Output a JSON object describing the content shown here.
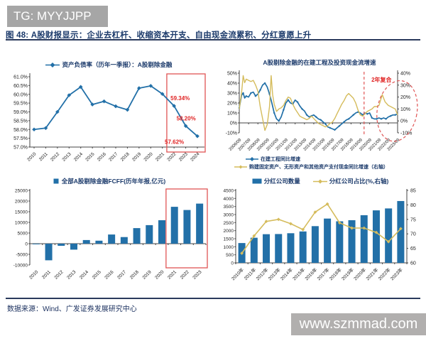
{
  "watermark_top": {
    "text": "TG: MYYJJPP"
  },
  "figure": {
    "title": "图 48: A股财报显示：企业去杠杆、收缩资本开支、自由现金流累积、分红意愿上升"
  },
  "footer": {
    "source": "数据来源：Wind、广发证券发展研究中心"
  },
  "watermark_bottom": {
    "text": "www.szmmad.com"
  },
  "colors": {
    "blue": "#2270a8",
    "yellow": "#d5bc5c",
    "red": "#e02424",
    "red_box": "#e05555",
    "navy": "#1b3a6b"
  },
  "chart_data": [
    {
      "id": "debt-ratio",
      "type": "line",
      "legend": "资产负债率（历年一季报）：A股剔除金融",
      "categories": [
        "2010",
        "2011",
        "2012",
        "2013",
        "2014",
        "2015",
        "2016",
        "2017",
        "2018",
        "2019",
        "2020",
        "2021",
        "2022",
        "2023",
        "2024"
      ],
      "values": [
        58.0,
        58.08,
        59.0,
        59.95,
        60.42,
        59.42,
        59.6,
        59.32,
        59.12,
        60.35,
        60.48,
        60.02,
        59.34,
        58.2,
        57.62
      ],
      "ylim": [
        57.0,
        61.0
      ],
      "ystep": 0.5,
      "grid": false,
      "legend_position": "top",
      "annotations": [
        {
          "text": "59.34%",
          "category": "2022"
        },
        {
          "text": "58.20%",
          "category": "2023"
        },
        {
          "text": "57.62%",
          "category": "2024"
        }
      ],
      "highlight_box_categories": [
        "2022",
        "2024"
      ]
    },
    {
      "id": "capex-growth",
      "type": "line",
      "title": "A股剔除金融的在建工程及投资现金流增速",
      "x_range": [
        2006.75,
        2023.75
      ],
      "x_ticks": [
        "2006/09",
        "2007/09",
        "2008/09",
        "2009/09",
        "2010/09",
        "2011/09",
        "2012/09",
        "2013/09",
        "2014/09",
        "2015/09",
        "2016/09",
        "2017/09",
        "2018/09",
        "2019/09",
        "2020/09",
        "2021/09",
        "2022/09",
        "2023/09"
      ],
      "left_axis": {
        "min": -10,
        "max": 50,
        "step": 10,
        "unit": "%"
      },
      "right_axis": {
        "min": -10,
        "max": 40,
        "step": 10,
        "unit": "%"
      },
      "grid": false,
      "legend_position": "bottom",
      "series": [
        {
          "name": "在建工程同比增速",
          "axis": "left",
          "color": "blue",
          "points": [
            [
              2006.75,
              15
            ],
            [
              2007.0,
              28
            ],
            [
              2007.17,
              30
            ],
            [
              2007.33,
              25
            ],
            [
              2007.5,
              27
            ],
            [
              2007.75,
              26
            ],
            [
              2008.0,
              30
            ],
            [
              2008.25,
              31
            ],
            [
              2008.5,
              27
            ],
            [
              2008.75,
              29
            ],
            [
              2009.0,
              33
            ],
            [
              2009.25,
              38
            ],
            [
              2009.5,
              40
            ],
            [
              2009.75,
              36
            ],
            [
              2010.0,
              29
            ],
            [
              2010.25,
              20
            ],
            [
              2010.5,
              10
            ],
            [
              2010.75,
              4
            ],
            [
              2011.0,
              2
            ],
            [
              2011.25,
              6
            ],
            [
              2011.5,
              13
            ],
            [
              2011.75,
              20
            ],
            [
              2012.0,
              23
            ],
            [
              2012.25,
              20
            ],
            [
              2012.5,
              19
            ],
            [
              2012.75,
              23
            ],
            [
              2013.0,
              21
            ],
            [
              2013.25,
              17
            ],
            [
              2013.5,
              14
            ],
            [
              2013.75,
              12
            ],
            [
              2014.0,
              8
            ],
            [
              2014.25,
              6
            ],
            [
              2014.5,
              7
            ],
            [
              2014.75,
              8
            ],
            [
              2015.0,
              6
            ],
            [
              2015.25,
              4
            ],
            [
              2015.5,
              3
            ],
            [
              2015.75,
              1
            ],
            [
              2016.0,
              -1
            ],
            [
              2016.25,
              -4
            ],
            [
              2016.5,
              -5
            ],
            [
              2016.75,
              -6
            ],
            [
              2017.0,
              -7
            ],
            [
              2017.25,
              -5
            ],
            [
              2017.5,
              -3
            ],
            [
              2017.75,
              -1
            ],
            [
              2018.0,
              1
            ],
            [
              2018.25,
              3
            ],
            [
              2018.5,
              4
            ],
            [
              2018.75,
              6
            ],
            [
              2019.0,
              8
            ],
            [
              2019.25,
              10
            ],
            [
              2019.5,
              11
            ],
            [
              2019.75,
              10
            ],
            [
              2020.0,
              8
            ],
            [
              2020.25,
              10
            ],
            [
              2020.5,
              9
            ],
            [
              2020.75,
              10
            ],
            [
              2021.0,
              5
            ],
            [
              2021.25,
              4
            ],
            [
              2021.5,
              4
            ],
            [
              2021.75,
              5
            ],
            [
              2022.0,
              4
            ],
            [
              2022.25,
              5
            ],
            [
              2022.5,
              4
            ],
            [
              2022.75,
              6
            ],
            [
              2023.0,
              7
            ],
            [
              2023.25,
              8
            ],
            [
              2023.5,
              8
            ],
            [
              2023.75,
              9
            ]
          ]
        },
        {
          "name": "购建固定资产、无形资产和其他资产支付现金同比增速（右轴）",
          "axis": "right",
          "color": "yellow",
          "points": [
            [
              2006.75,
              10
            ],
            [
              2007.0,
              24
            ],
            [
              2007.17,
              38
            ],
            [
              2007.33,
              32
            ],
            [
              2007.5,
              35
            ],
            [
              2007.75,
              34
            ],
            [
              2008.0,
              33
            ],
            [
              2008.25,
              34
            ],
            [
              2008.5,
              30
            ],
            [
              2008.75,
              25
            ],
            [
              2009.0,
              12
            ],
            [
              2009.25,
              2
            ],
            [
              2009.5,
              -8
            ],
            [
              2009.75,
              -3
            ],
            [
              2010.0,
              12
            ],
            [
              2010.17,
              38
            ],
            [
              2010.33,
              22
            ],
            [
              2010.5,
              14
            ],
            [
              2010.75,
              8
            ],
            [
              2011.0,
              10
            ],
            [
              2011.25,
              11
            ],
            [
              2011.5,
              13
            ],
            [
              2011.75,
              17
            ],
            [
              2012.0,
              20
            ],
            [
              2012.25,
              19
            ],
            [
              2012.5,
              14
            ],
            [
              2012.75,
              10
            ],
            [
              2013.0,
              7
            ],
            [
              2013.25,
              4
            ],
            [
              2013.5,
              3
            ],
            [
              2013.75,
              2
            ],
            [
              2014.0,
              1
            ],
            [
              2014.25,
              2
            ],
            [
              2014.5,
              4
            ],
            [
              2014.75,
              2
            ],
            [
              2015.0,
              0
            ],
            [
              2015.25,
              -2
            ],
            [
              2015.5,
              -3
            ],
            [
              2015.75,
              -4
            ],
            [
              2016.0,
              -5
            ],
            [
              2016.25,
              -4
            ],
            [
              2016.5,
              -2
            ],
            [
              2016.75,
              -1
            ],
            [
              2017.0,
              2
            ],
            [
              2017.25,
              6
            ],
            [
              2017.5,
              10
            ],
            [
              2017.75,
              14
            ],
            [
              2018.0,
              17
            ],
            [
              2018.25,
              21
            ],
            [
              2018.5,
              23
            ],
            [
              2018.75,
              21
            ],
            [
              2019.0,
              19
            ],
            [
              2019.25,
              15
            ],
            [
              2019.5,
              9
            ],
            [
              2019.75,
              5
            ],
            [
              2020.0,
              4
            ],
            [
              2020.25,
              6
            ],
            [
              2020.5,
              8
            ],
            [
              2020.75,
              9
            ],
            [
              2021.0,
              10
            ],
            [
              2021.25,
              12
            ],
            [
              2021.5,
              12
            ],
            [
              2021.75,
              13
            ],
            [
              2022.1,
              22
            ],
            [
              2022.4,
              16
            ],
            [
              2022.75,
              13
            ],
            [
              2023.0,
              12
            ],
            [
              2023.25,
              11
            ],
            [
              2023.5,
              10
            ],
            [
              2023.75,
              5
            ]
          ]
        }
      ],
      "annotations": {
        "vline_year": 2020.15,
        "ellipse": {
          "cx_year": 2023.7,
          "cy_left_value": 12
        },
        "label": "2年复合"
      }
    },
    {
      "id": "fcff",
      "type": "bar",
      "legend": "全部A股剔除金融FCFF(历年年报,亿元)",
      "categories": [
        "2010",
        "2011",
        "2012",
        "2013",
        "2014",
        "2015",
        "2016",
        "2017",
        "2018",
        "2019",
        "2020",
        "2021",
        "2022",
        "2023"
      ],
      "values": [
        -300,
        -7800,
        -1000,
        -2800,
        1700,
        1400,
        4300,
        3100,
        7300,
        8700,
        11000,
        17300,
        15800,
        18800
      ],
      "ylim": [
        -10000,
        25000
      ],
      "ystep": 5000,
      "grid": false,
      "legend_position": "top",
      "highlight_box_categories": [
        "2021",
        "2023"
      ]
    },
    {
      "id": "dividends",
      "type": "bar-line",
      "legend_bar": "分红公司数量",
      "legend_line": "分红公司占比(%,右轴)",
      "categories": [
        "2010年",
        "2011年",
        "2012年",
        "2013年",
        "2014年",
        "2015年",
        "2016年",
        "2017年",
        "2018年",
        "2019年",
        "2020年",
        "2021年",
        "2022年",
        "2023年"
      ],
      "bars": [
        1230,
        1560,
        1780,
        1790,
        1840,
        1950,
        2280,
        2750,
        2580,
        2650,
        2960,
        3260,
        3380,
        3840
      ],
      "line": [
        63.3,
        69.3,
        74.3,
        75.0,
        73.5,
        71.5,
        77.5,
        80.3,
        73.8,
        72.0,
        72.0,
        70.5,
        67.3,
        71.8
      ],
      "left_axis": {
        "min": 0,
        "max": 4500,
        "step": 500
      },
      "right_axis": {
        "min": 60,
        "max": 85,
        "step": 5
      },
      "grid": false,
      "legend_position": "top"
    }
  ]
}
